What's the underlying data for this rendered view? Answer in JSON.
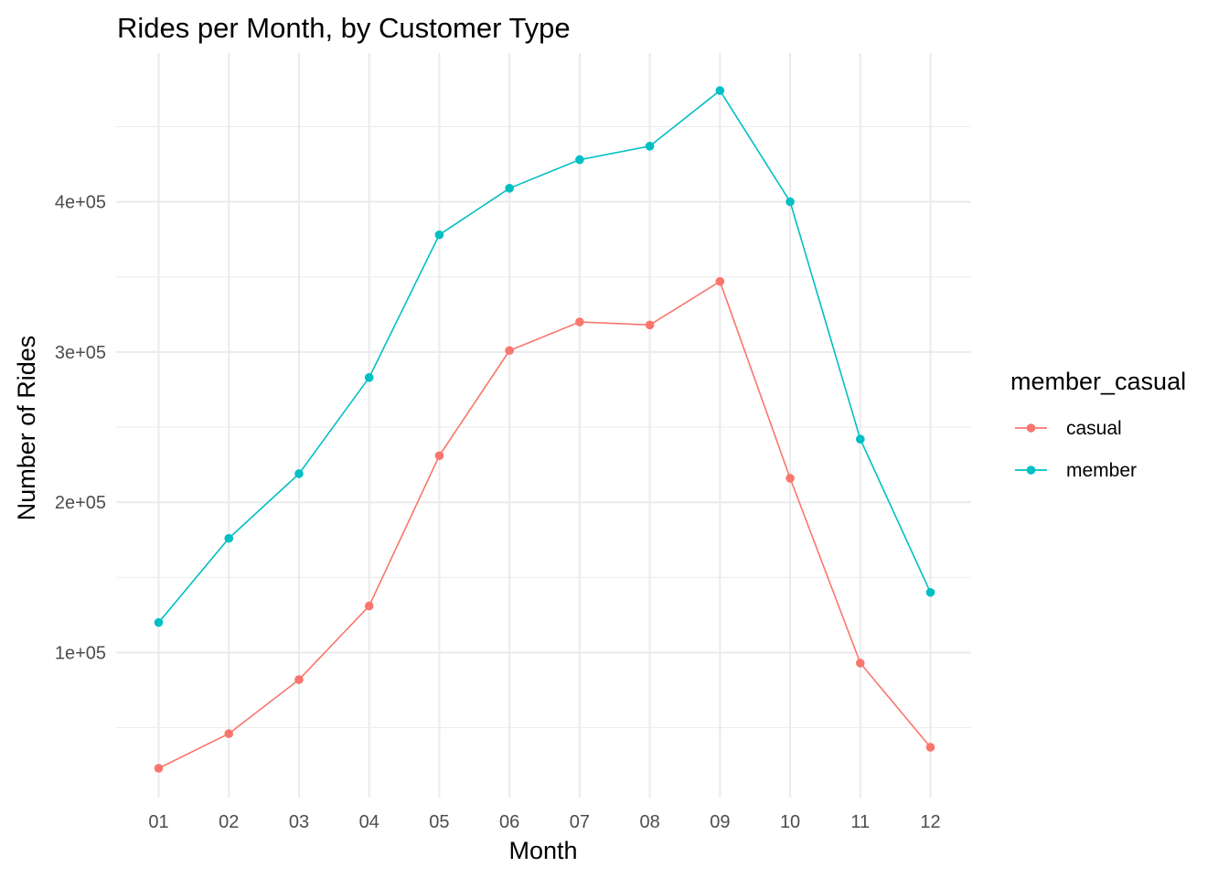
{
  "chart_data": {
    "type": "line",
    "title": "Rides per Month, by Customer Type",
    "xlabel": "Month",
    "ylabel": "Number of Rides",
    "categories": [
      "01",
      "02",
      "03",
      "04",
      "05",
      "06",
      "07",
      "08",
      "09",
      "10",
      "11",
      "12"
    ],
    "y_ticks": [
      100000,
      200000,
      300000,
      400000
    ],
    "y_tick_labels": [
      "1e+05",
      "2e+05",
      "3e+05",
      "4e+05"
    ],
    "ylim": [
      0,
      500000
    ],
    "grid": true,
    "legend": {
      "title": "member_casual",
      "placement": "right"
    },
    "series": [
      {
        "name": "casual",
        "color": "#F8766D",
        "values": [
          23000,
          46000,
          82000,
          131000,
          231000,
          301000,
          320000,
          318000,
          347000,
          216000,
          93000,
          37000
        ]
      },
      {
        "name": "member",
        "color": "#00BFC4",
        "values": [
          120000,
          176000,
          219000,
          283000,
          378000,
          409000,
          428000,
          437000,
          474000,
          400000,
          242000,
          140000
        ]
      }
    ]
  }
}
